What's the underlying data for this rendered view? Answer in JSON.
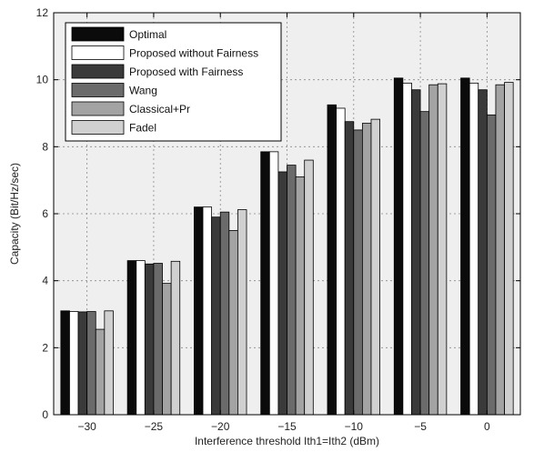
{
  "chart_data": {
    "type": "bar",
    "xlabel": "Interference threshold Ith1=Ith2 (dBm)",
    "ylabel": "Capacity (Bit/Hz/sec)",
    "ylim": [
      0,
      12
    ],
    "yticks": [
      0,
      2,
      4,
      6,
      8,
      10,
      12
    ],
    "categories": [
      "−30",
      "−25",
      "−20",
      "−15",
      "−10",
      "−5",
      "0"
    ],
    "grid": true,
    "legend_position": "top-left",
    "series": [
      {
        "name": "Optimal",
        "color": "#0b0b0b",
        "values": [
          3.1,
          4.6,
          6.2,
          7.85,
          9.25,
          10.05,
          10.05
        ]
      },
      {
        "name": "Proposed without Fairness",
        "color": "#ffffff",
        "values": [
          3.08,
          4.6,
          6.2,
          7.85,
          9.15,
          9.9,
          9.9
        ]
      },
      {
        "name": "Proposed with Fairness",
        "color": "#3a3a3a",
        "values": [
          3.07,
          4.5,
          5.9,
          7.25,
          8.75,
          9.7,
          9.7
        ]
      },
      {
        "name": "Wang",
        "color": "#6b6b6b",
        "values": [
          3.08,
          4.52,
          6.05,
          7.45,
          8.5,
          9.05,
          8.95
        ]
      },
      {
        "name": "Classical+Pr",
        "color": "#a3a3a3",
        "values": [
          2.55,
          3.92,
          5.5,
          7.1,
          8.7,
          9.85,
          9.85
        ]
      },
      {
        "name": "Fadel",
        "color": "#d0d0d0",
        "values": [
          3.1,
          4.58,
          6.12,
          7.6,
          8.82,
          9.88,
          9.92
        ]
      }
    ]
  }
}
